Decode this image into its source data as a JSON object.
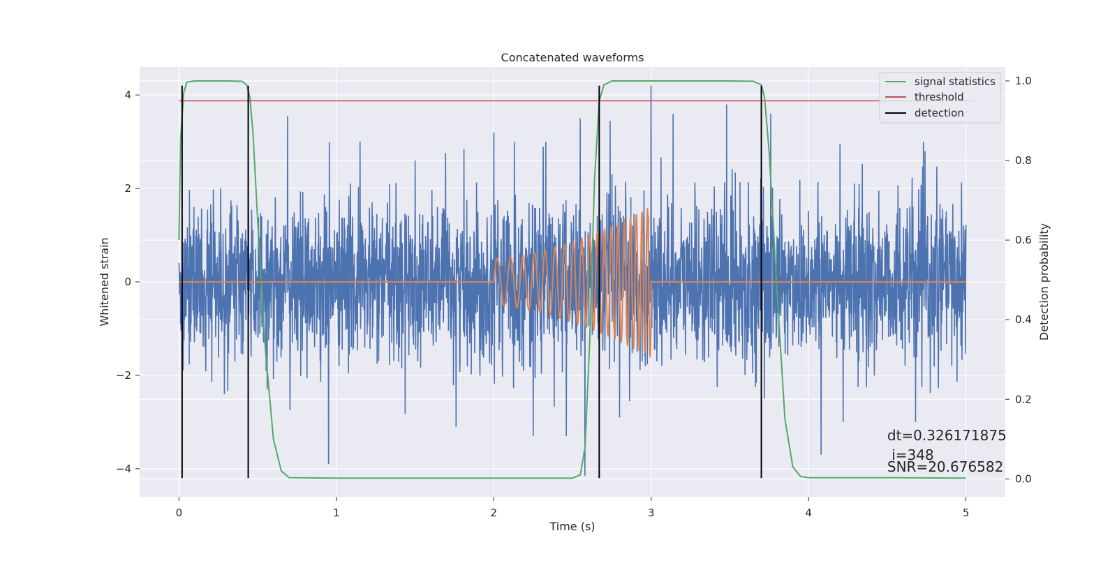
{
  "chart_data": {
    "type": "line",
    "title": "Concatenated waveforms",
    "xlabel": "Time (s)",
    "ylabel": "Whitened strain",
    "ylabel_right": "Detection probability",
    "xlim": [
      -0.25,
      5.25
    ],
    "ylim": [
      -4.6,
      4.6
    ],
    "ylim_right": [
      -0.045,
      1.035
    ],
    "x_ticks": [
      0,
      1,
      2,
      3,
      4,
      5
    ],
    "x_tick_labels": [
      "0",
      "1",
      "2",
      "3",
      "4",
      "5"
    ],
    "y_ticks": [
      -4,
      -2,
      0,
      2,
      4
    ],
    "y_tick_labels": [
      "−4",
      "−2",
      "0",
      "2",
      "4"
    ],
    "y_right_ticks": [
      0.0,
      0.2,
      0.4,
      0.6,
      0.8,
      1.0
    ],
    "y_right_tick_labels": [
      "0.0",
      "0.2",
      "0.4",
      "0.6",
      "0.8",
      "1.0"
    ],
    "grid": true,
    "legend_position": "top-right",
    "colors": {
      "background": "#eaeaf2",
      "grid": "#ffffff",
      "noise": "#4c72b0",
      "injection": "#dd8452",
      "signal_statistics": "#55a868",
      "threshold": "#c44e52",
      "detection": "#000000"
    },
    "series": [
      {
        "name": "signal statistics",
        "axis": "right",
        "x": [
          0,
          0.01,
          0.03,
          0.05,
          0.1,
          0.2,
          0.3,
          0.4,
          0.43,
          0.45,
          0.47,
          0.5,
          0.55,
          0.6,
          0.65,
          0.7,
          1.0,
          1.5,
          2.0,
          2.5,
          2.55,
          2.58,
          2.61,
          2.64,
          2.67,
          2.7,
          2.75,
          3.0,
          3.5,
          3.65,
          3.7,
          3.72,
          3.75,
          3.8,
          3.85,
          3.9,
          3.95,
          4.0,
          4.5,
          5.0
        ],
        "values": [
          0.6,
          0.85,
          0.97,
          0.997,
          1.0,
          1.0,
          1.0,
          0.999,
          0.99,
          0.96,
          0.87,
          0.65,
          0.32,
          0.1,
          0.02,
          0.003,
          0.002,
          0.002,
          0.002,
          0.002,
          0.01,
          0.08,
          0.35,
          0.75,
          0.95,
          0.99,
          1.0,
          1.0,
          1.0,
          0.999,
          0.99,
          0.96,
          0.82,
          0.47,
          0.15,
          0.03,
          0.006,
          0.003,
          0.003,
          0.002
        ]
      },
      {
        "name": "threshold",
        "axis": "right",
        "x": [
          0,
          5.05
        ],
        "values": [
          0.95,
          0.95
        ]
      }
    ],
    "noise_trace": {
      "axis": "left",
      "x_range": [
        0,
        5
      ],
      "sigma": 0.85,
      "spikes": [
        [
          0.02,
          -2.0
        ],
        [
          0.44,
          2.7
        ],
        [
          0.56,
          -2.3
        ],
        [
          0.69,
          3.55
        ],
        [
          0.95,
          -3.9
        ],
        [
          1.15,
          3.0
        ],
        [
          1.5,
          2.6
        ],
        [
          1.76,
          -3.1
        ],
        [
          2.0,
          3.2
        ],
        [
          2.13,
          3.0
        ],
        [
          2.25,
          -3.3
        ],
        [
          2.33,
          3.0
        ],
        [
          2.46,
          -3.3
        ],
        [
          2.55,
          3.5
        ],
        [
          2.58,
          -4.15
        ],
        [
          2.74,
          3.45
        ],
        [
          2.8,
          -2.9
        ],
        [
          3.0,
          4.2
        ],
        [
          3.14,
          3.6
        ],
        [
          3.48,
          3.8
        ],
        [
          3.72,
          -2.5
        ],
        [
          3.76,
          3.6
        ],
        [
          4.08,
          -3.7
        ],
        [
          4.2,
          2.95
        ],
        [
          4.22,
          -3.0
        ],
        [
          4.68,
          -3.0
        ],
        [
          4.74,
          2.8
        ]
      ]
    },
    "injection": {
      "name": "",
      "axis": "left",
      "x_start": 2.0,
      "x_end": 3.0,
      "amp_start": 0.5,
      "amp_end": 1.6,
      "f_start": 11,
      "f_end": 30
    },
    "detections": {
      "name": "detection",
      "x": [
        0.02,
        0.44,
        2.67,
        3.7
      ],
      "ymin": -4.2,
      "ymax": 4.2
    },
    "legend": [
      {
        "label": "signal statistics",
        "color_key": "signal_statistics"
      },
      {
        "label": "threshold",
        "color_key": "threshold"
      },
      {
        "label": "detection",
        "color_key": "detection"
      }
    ],
    "annotations": {
      "dt": "dt=0.326171875",
      "i": " i=348",
      "snr": "SNR=20.676582",
      "anchor_x": 4.5
    }
  }
}
